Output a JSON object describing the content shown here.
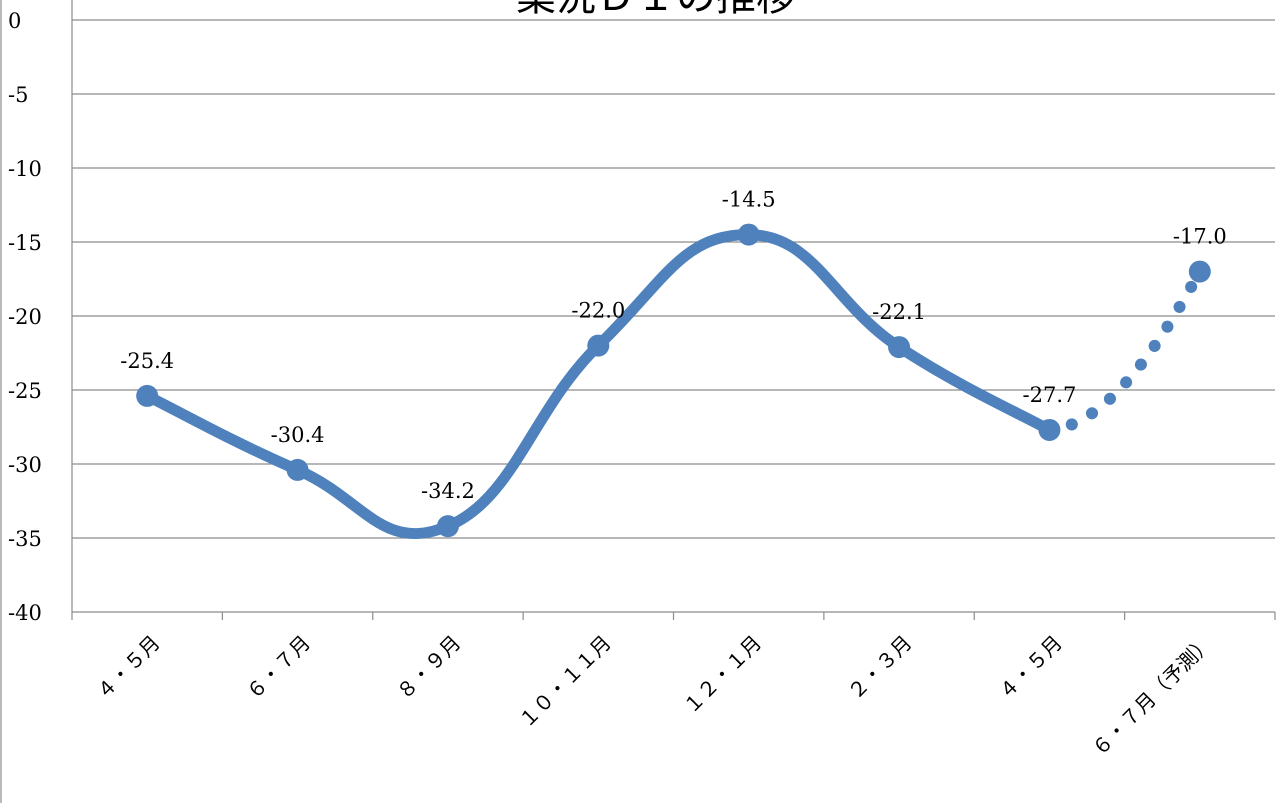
{
  "chart_data": {
    "type": "line",
    "title": "業況ＤＩの推移",
    "categories": [
      "４・５月",
      "６・７月",
      "８・９月",
      "１０・１１月",
      "１２・１月",
      "２・３月",
      "４・５月",
      "６・７月（予測）"
    ],
    "series": [
      {
        "values": [
          -25.4,
          -30.4,
          -34.2,
          -22.0,
          -14.5,
          -22.1,
          -27.7,
          -17.0
        ],
        "data_labels": [
          "-25.4",
          "-30.4",
          "-34.2",
          "-22.0",
          "-14.5",
          "-22.1",
          "-27.7",
          "-17.0"
        ],
        "forecast_from_index": 6
      }
    ],
    "ylim": [
      -40,
      0
    ],
    "yticks": [
      0,
      -5,
      -10,
      -15,
      -20,
      -25,
      -30,
      -35,
      -40
    ],
    "ytick_labels": [
      "0",
      "-5",
      "-10",
      "-15",
      "-20",
      "-25",
      "-30",
      "-35",
      "-40"
    ],
    "grid": true,
    "line_color": "#4F81BD"
  }
}
